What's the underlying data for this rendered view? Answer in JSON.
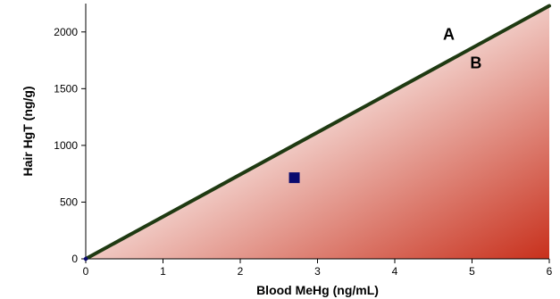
{
  "chart_data": {
    "type": "line",
    "xlabel": "Blood MeHg (ng/mL)",
    "ylabel": "Hair HgT (ng/g)",
    "xlim": [
      0,
      6
    ],
    "ylim": [
      0,
      2250
    ],
    "x_ticks": [
      0,
      1,
      2,
      3,
      4,
      5,
      6
    ],
    "y_ticks": [
      0,
      500,
      1000,
      1500,
      2000
    ],
    "grid": false,
    "series": [
      {
        "kind": "line",
        "color": "#1f3a12",
        "x": [
          0,
          6
        ],
        "y": [
          0,
          2230
        ]
      },
      {
        "kind": "marker",
        "marker": "square",
        "color": "#0a0a6e",
        "x": [
          2.7
        ],
        "y": [
          715
        ]
      }
    ],
    "shaded_region": {
      "description_color_light": "#ffffff",
      "description_color_dark": "#c8301c"
    },
    "annotations": [
      {
        "text": "A",
        "x": 4.7,
        "y": 1930
      },
      {
        "text": "B",
        "x": 5.05,
        "y": 1680
      }
    ]
  }
}
